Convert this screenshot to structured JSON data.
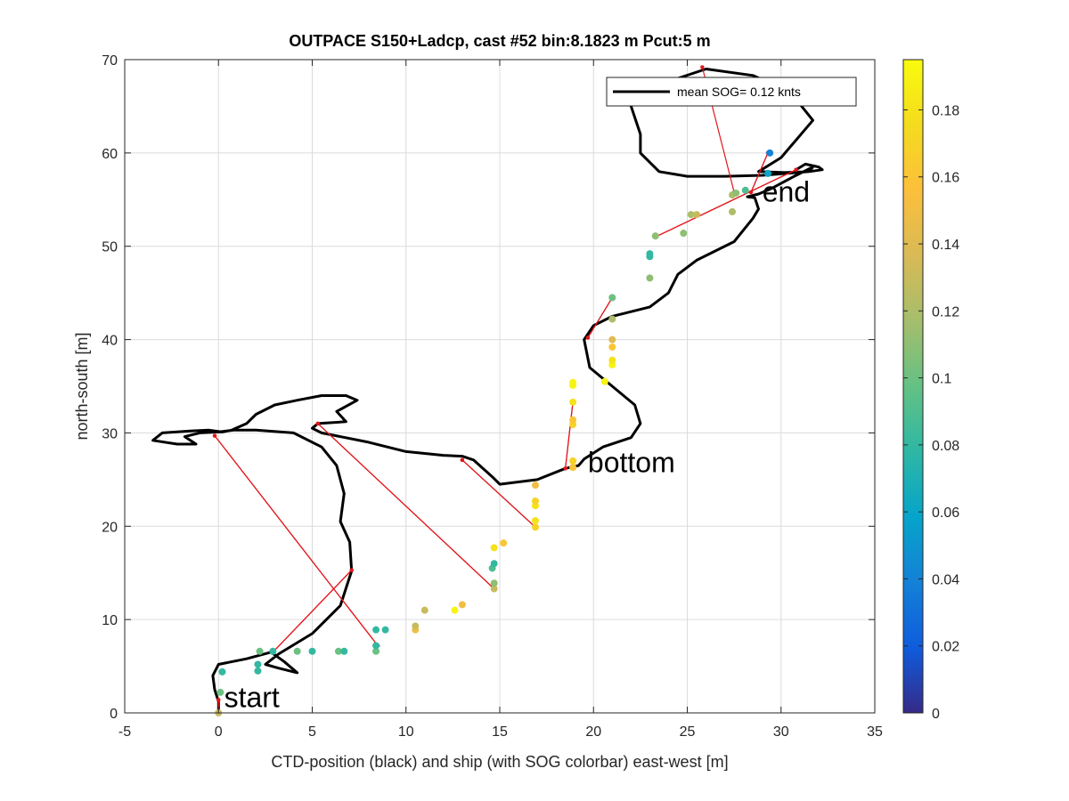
{
  "chart_data": {
    "type": "scatter",
    "title": "OUTPACE S150+Ladcp, cast #52 bin:8.1823 m  Pcut:5 m",
    "xlabel": "CTD-position (black) and ship (with SOG colorbar) east-west [m]",
    "ylabel": "north-south [m]",
    "xlim": [
      -5,
      35
    ],
    "ylim": [
      0,
      70
    ],
    "xticks": [
      "-5",
      "0",
      "5",
      "10",
      "15",
      "20",
      "25",
      "30",
      "35"
    ],
    "yticks": [
      "0",
      "10",
      "20",
      "30",
      "40",
      "50",
      "60",
      "70"
    ],
    "grid": true,
    "legend": {
      "label": "mean SOG=  0.12 knts",
      "placement": "top-right"
    },
    "colorbar": {
      "range": [
        0,
        0.195
      ],
      "ticks": [
        "0",
        "0.02",
        "0.04",
        "0.06",
        "0.08",
        "0.1",
        "0.12",
        "0.14",
        "0.16",
        "0.18"
      ],
      "colormap": "parula"
    },
    "annotations": [
      {
        "text": "start",
        "x": 0.3,
        "y": 0.6
      },
      {
        "text": "bottom",
        "x": 19.7,
        "y": 25.8
      },
      {
        "text": "end",
        "x": 29.0,
        "y": 54.8
      }
    ],
    "series": [
      {
        "kind": "ctd-track",
        "color": "#000000",
        "points": [
          [
            0,
            0
          ],
          [
            0,
            1.2
          ],
          [
            -0.2,
            2.5
          ],
          [
            -0.3,
            4
          ],
          [
            0,
            5.2
          ],
          [
            1.5,
            5.8
          ],
          [
            2.8,
            6.5
          ],
          [
            3.5,
            5.5
          ],
          [
            4.2,
            4.3
          ],
          [
            3.2,
            4.8
          ],
          [
            2.5,
            5.2
          ],
          [
            3.2,
            6.3
          ],
          [
            5,
            8.5
          ],
          [
            6.5,
            11.5
          ],
          [
            7.1,
            15.2
          ],
          [
            7,
            18.3
          ],
          [
            6.5,
            20.5
          ],
          [
            6.7,
            23.5
          ],
          [
            6.3,
            26.5
          ],
          [
            5.5,
            28.5
          ],
          [
            4,
            30
          ],
          [
            2,
            30.3
          ],
          [
            0.8,
            30.3
          ],
          [
            0,
            30.1
          ],
          [
            -1,
            30
          ],
          [
            -1.8,
            29.6
          ],
          [
            -1.2,
            28.8
          ],
          [
            -2.2,
            28.8
          ],
          [
            -3.5,
            29.2
          ],
          [
            -3,
            30
          ],
          [
            -1.5,
            30.2
          ],
          [
            -0.5,
            30.3
          ],
          [
            0.2,
            30.1
          ],
          [
            0.7,
            30.3
          ],
          [
            1.5,
            31
          ],
          [
            2,
            32
          ],
          [
            3,
            33
          ],
          [
            4.2,
            33.5
          ],
          [
            5.5,
            34
          ],
          [
            6.8,
            34
          ],
          [
            7.4,
            33.5
          ],
          [
            6.3,
            32.3
          ],
          [
            6.8,
            31.2
          ],
          [
            5.3,
            31
          ],
          [
            5,
            30.5
          ],
          [
            5.5,
            30
          ],
          [
            8,
            29
          ],
          [
            10,
            28
          ],
          [
            12,
            27.6
          ],
          [
            13,
            27.5
          ],
          [
            13.6,
            27.1
          ],
          [
            14.6,
            25.3
          ],
          [
            15,
            24.5
          ],
          [
            17,
            25
          ],
          [
            18.5,
            26.2
          ],
          [
            19.2,
            26.5
          ],
          [
            19.5,
            27.2
          ],
          [
            20.5,
            28.5
          ],
          [
            22,
            29.5
          ],
          [
            22.5,
            31
          ],
          [
            22.2,
            33
          ],
          [
            21,
            35
          ],
          [
            19.8,
            37
          ],
          [
            19.5,
            40
          ],
          [
            20,
            41.5
          ],
          [
            21,
            42.5
          ],
          [
            23,
            43.5
          ],
          [
            24,
            45
          ],
          [
            24.5,
            47
          ],
          [
            25.5,
            48.5
          ],
          [
            27.5,
            50.5
          ],
          [
            28.5,
            53
          ],
          [
            28.8,
            54
          ],
          [
            28.6,
            55.2
          ],
          [
            28.2,
            55.3
          ],
          [
            28.8,
            55.6
          ],
          [
            29.5,
            56.2
          ],
          [
            30.7,
            57.5
          ],
          [
            31.7,
            58.5
          ],
          [
            31.5,
            58
          ],
          [
            29,
            57.6
          ],
          [
            27,
            57.5
          ],
          [
            25,
            57.5
          ],
          [
            23.5,
            58
          ],
          [
            22.5,
            60
          ],
          [
            22.5,
            62
          ],
          [
            22,
            65
          ],
          [
            22.5,
            67.3
          ],
          [
            24.5,
            68
          ],
          [
            26,
            69
          ],
          [
            28.5,
            68.3
          ],
          [
            30.5,
            66.5
          ],
          [
            31.7,
            63.5
          ],
          [
            30,
            59.5
          ],
          [
            28.8,
            58
          ],
          [
            30.2,
            57.9
          ],
          [
            31.5,
            58
          ],
          [
            32.2,
            58.2
          ],
          [
            32,
            58.5
          ],
          [
            31.3,
            58.8
          ],
          [
            30.8,
            58.2
          ]
        ]
      },
      {
        "kind": "bin-displacement",
        "color": "#e3161b",
        "points": [
          [
            0,
            0
          ],
          [
            0,
            1.4
          ],
          [
            0,
            0
          ],
          [
            0,
            1.4
          ],
          [
            -0.2,
            29.7
          ],
          [
            8.5,
            7.2
          ],
          [
            -0.2,
            29.7
          ],
          [
            8.5,
            7.2
          ],
          [
            7.1,
            15.3
          ],
          [
            2.9,
            6.5
          ],
          [
            7.1,
            15.3
          ],
          [
            2.9,
            6.5
          ],
          [
            5.3,
            31
          ],
          [
            14.7,
            13.3
          ],
          [
            5.3,
            31
          ],
          [
            14.7,
            13.3
          ],
          [
            13,
            27.1
          ],
          [
            16.9,
            19.9
          ],
          [
            13,
            27.1
          ],
          [
            16.9,
            19.9
          ],
          [
            18.5,
            26.2
          ],
          [
            18.9,
            33.3
          ],
          [
            18.5,
            26.2
          ],
          [
            18.9,
            33.3
          ],
          [
            19.7,
            40.2
          ],
          [
            21,
            44.5
          ],
          [
            19.7,
            40.2
          ],
          [
            21,
            44.5
          ],
          [
            23.3,
            51
          ],
          [
            30.8,
            58.2
          ],
          [
            23.3,
            51
          ],
          [
            30.8,
            58.2
          ],
          [
            28.4,
            55.8
          ],
          [
            29.3,
            60
          ],
          [
            28.4,
            55.8
          ],
          [
            29.3,
            60
          ],
          [
            27.5,
            55.8
          ],
          [
            25.8,
            69.2
          ]
        ]
      },
      {
        "kind": "ship-sog",
        "points": [
          [
            0,
            0,
            0.13
          ],
          [
            0.1,
            2.2,
            0.1
          ],
          [
            0.2,
            4.4,
            0.08
          ],
          [
            2.1,
            4.5,
            0.08
          ],
          [
            2.1,
            5.2,
            0.08
          ],
          [
            2.2,
            6.6,
            0.1
          ],
          [
            2.9,
            6.6,
            0.08
          ],
          [
            4.2,
            6.6,
            0.1
          ],
          [
            5,
            6.6,
            0.08
          ],
          [
            6.4,
            6.6,
            0.1
          ],
          [
            6.7,
            6.6,
            0.08
          ],
          [
            8.4,
            6.6,
            0.1
          ],
          [
            8.4,
            7.2,
            0.08
          ],
          [
            8.4,
            8.9,
            0.08
          ],
          [
            8.9,
            8.9,
            0.08
          ],
          [
            10.5,
            8.9,
            0.15
          ],
          [
            10.5,
            9.3,
            0.13
          ],
          [
            11,
            11,
            0.13
          ],
          [
            12.6,
            11,
            0.19
          ],
          [
            13,
            11.6,
            0.15
          ],
          [
            14.7,
            13.3,
            0.13
          ],
          [
            14.7,
            13.9,
            0.11
          ],
          [
            14.6,
            15.5,
            0.09
          ],
          [
            14.7,
            16,
            0.08
          ],
          [
            14.7,
            17.7,
            0.18
          ],
          [
            15.2,
            18.2,
            0.16
          ],
          [
            16.9,
            19.9,
            0.17
          ],
          [
            16.9,
            20.6,
            0.18
          ],
          [
            16.9,
            22.2,
            0.18
          ],
          [
            16.9,
            22.7,
            0.17
          ],
          [
            16.9,
            24.4,
            0.15
          ],
          [
            18.9,
            26.3,
            0.16
          ],
          [
            18.9,
            27,
            0.17
          ],
          [
            18.9,
            30.9,
            0.17
          ],
          [
            18.9,
            31.4,
            0.16
          ],
          [
            18.9,
            33.3,
            0.18
          ],
          [
            18.9,
            35.1,
            0.19
          ],
          [
            18.9,
            35.4,
            0.19
          ],
          [
            20.6,
            35.5,
            0.19
          ],
          [
            21,
            37.3,
            0.19
          ],
          [
            21,
            37.8,
            0.18
          ],
          [
            21,
            39.2,
            0.16
          ],
          [
            21,
            40,
            0.14
          ],
          [
            21,
            42.2,
            0.12
          ],
          [
            21,
            44.5,
            0.1
          ],
          [
            23,
            46.6,
            0.11
          ],
          [
            23,
            48.9,
            0.08
          ],
          [
            23,
            49.2,
            0.08
          ],
          [
            23.3,
            51.1,
            0.11
          ],
          [
            24.8,
            51.4,
            0.11
          ],
          [
            25.2,
            53.4,
            0.12
          ],
          [
            25.5,
            53.4,
            0.13
          ],
          [
            27.4,
            53.7,
            0.12
          ],
          [
            27.4,
            55.5,
            0.12
          ],
          [
            27.6,
            55.7,
            0.11
          ],
          [
            28.1,
            56,
            0.09
          ],
          [
            29.3,
            57.8,
            0.06
          ],
          [
            29.4,
            60,
            0.04
          ]
        ]
      }
    ]
  }
}
